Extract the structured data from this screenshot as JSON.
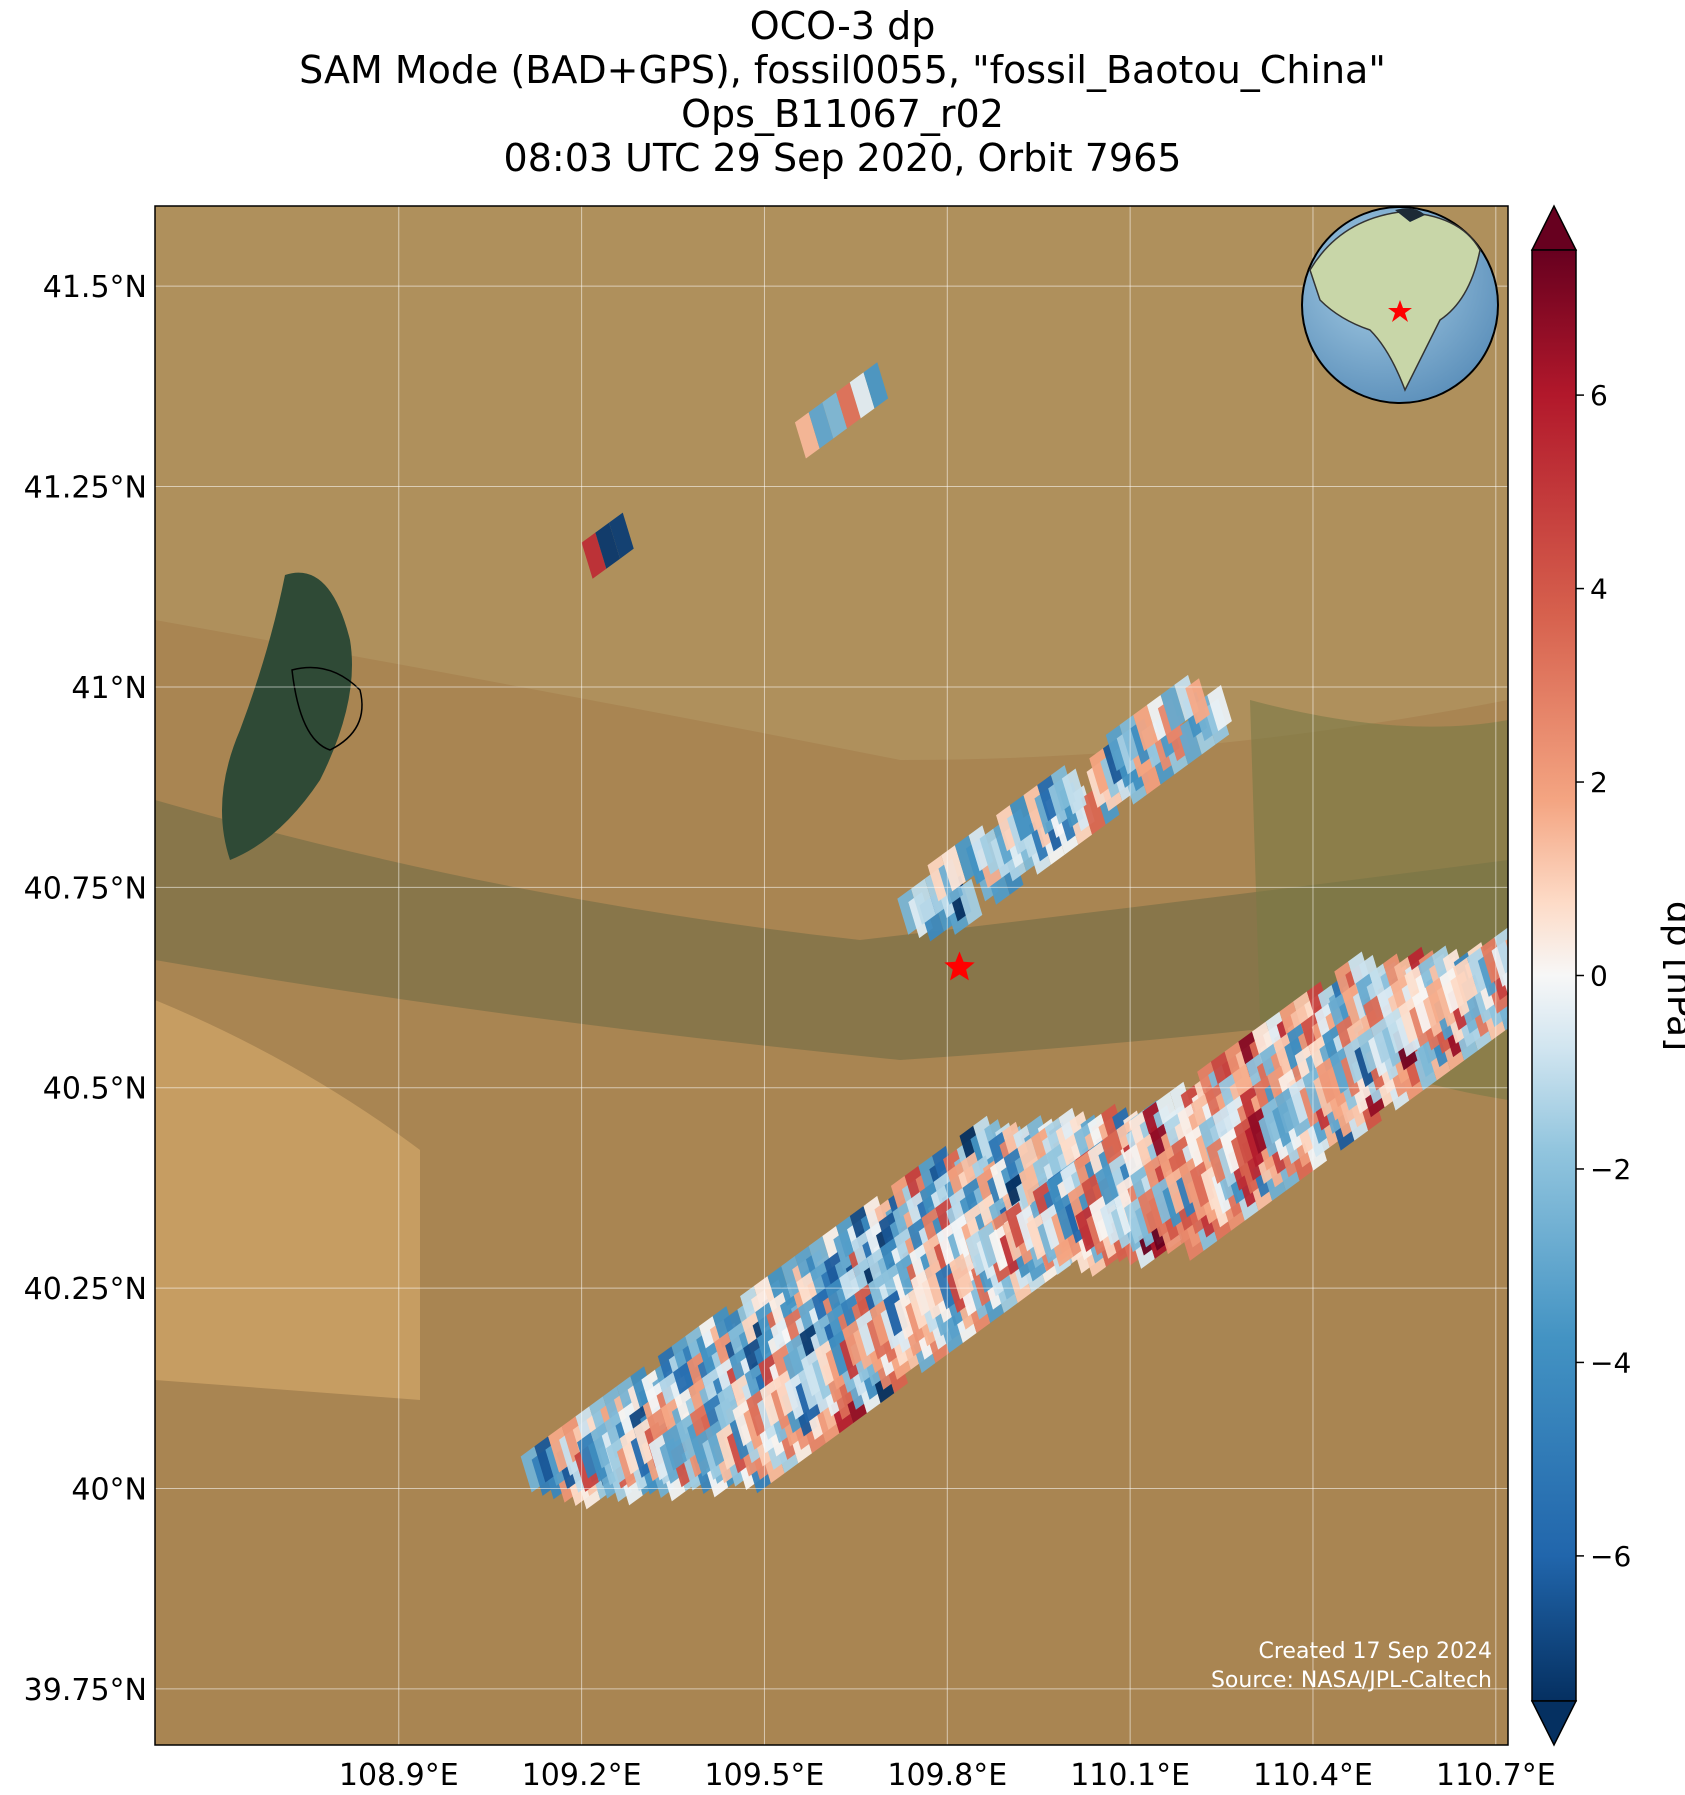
{
  "title": {
    "line1": "OCO-3 dp",
    "line2": "SAM Mode (BAD+GPS), fossil0055, \"fossil_Baotou_China\"",
    "line3": "Ops_B11067_r02",
    "line4": "08:03 UTC 29 Sep 2020, Orbit 7965"
  },
  "map": {
    "lon_range": [
      108.5,
      110.72
    ],
    "lat_range": [
      39.68,
      41.6
    ],
    "lon_ticks": [
      {
        "value": 108.9,
        "label": "108.9°E"
      },
      {
        "value": 109.2,
        "label": "109.2°E"
      },
      {
        "value": 109.5,
        "label": "109.5°E"
      },
      {
        "value": 109.8,
        "label": "109.8°E"
      },
      {
        "value": 110.1,
        "label": "110.1°E"
      },
      {
        "value": 110.4,
        "label": "110.4°E"
      },
      {
        "value": 110.7,
        "label": "110.7°E"
      }
    ],
    "lat_ticks": [
      {
        "value": 41.5,
        "label": "41.5°N"
      },
      {
        "value": 41.25,
        "label": "41.25°N"
      },
      {
        "value": 41.0,
        "label": "41°N"
      },
      {
        "value": 40.75,
        "label": "40.75°N"
      },
      {
        "value": 40.5,
        "label": "40.5°N"
      },
      {
        "value": 40.25,
        "label": "40.25°N"
      },
      {
        "value": 40.0,
        "label": "40°N"
      },
      {
        "value": 39.75,
        "label": "39.75°N"
      }
    ],
    "grid": true,
    "target": {
      "lon": 109.82,
      "lat": 40.65,
      "color": "#ff0000",
      "icon": "star-icon"
    },
    "background": "satellite-imagery",
    "inset_globe": {
      "position": "top-right",
      "marker": "star-icon"
    }
  },
  "colorbar": {
    "label": "dp [hPa]",
    "cmap": "RdBu_r",
    "min": -7.5,
    "max": 7.5,
    "extend": "both",
    "ticks": [
      {
        "value": 6,
        "label": "6"
      },
      {
        "value": 4,
        "label": "4"
      },
      {
        "value": 2,
        "label": "2"
      },
      {
        "value": 0,
        "label": "0"
      },
      {
        "value": -2,
        "label": "−2"
      },
      {
        "value": -4,
        "label": "−4"
      },
      {
        "value": -6,
        "label": "−6"
      }
    ]
  },
  "credits": {
    "created": "Created 17 Sep 2024",
    "source": "Source: NASA/JPL-Caltech"
  },
  "colors": {
    "target_star": "#ff0000",
    "land": "#b3925a",
    "water": "#2f4a36"
  }
}
